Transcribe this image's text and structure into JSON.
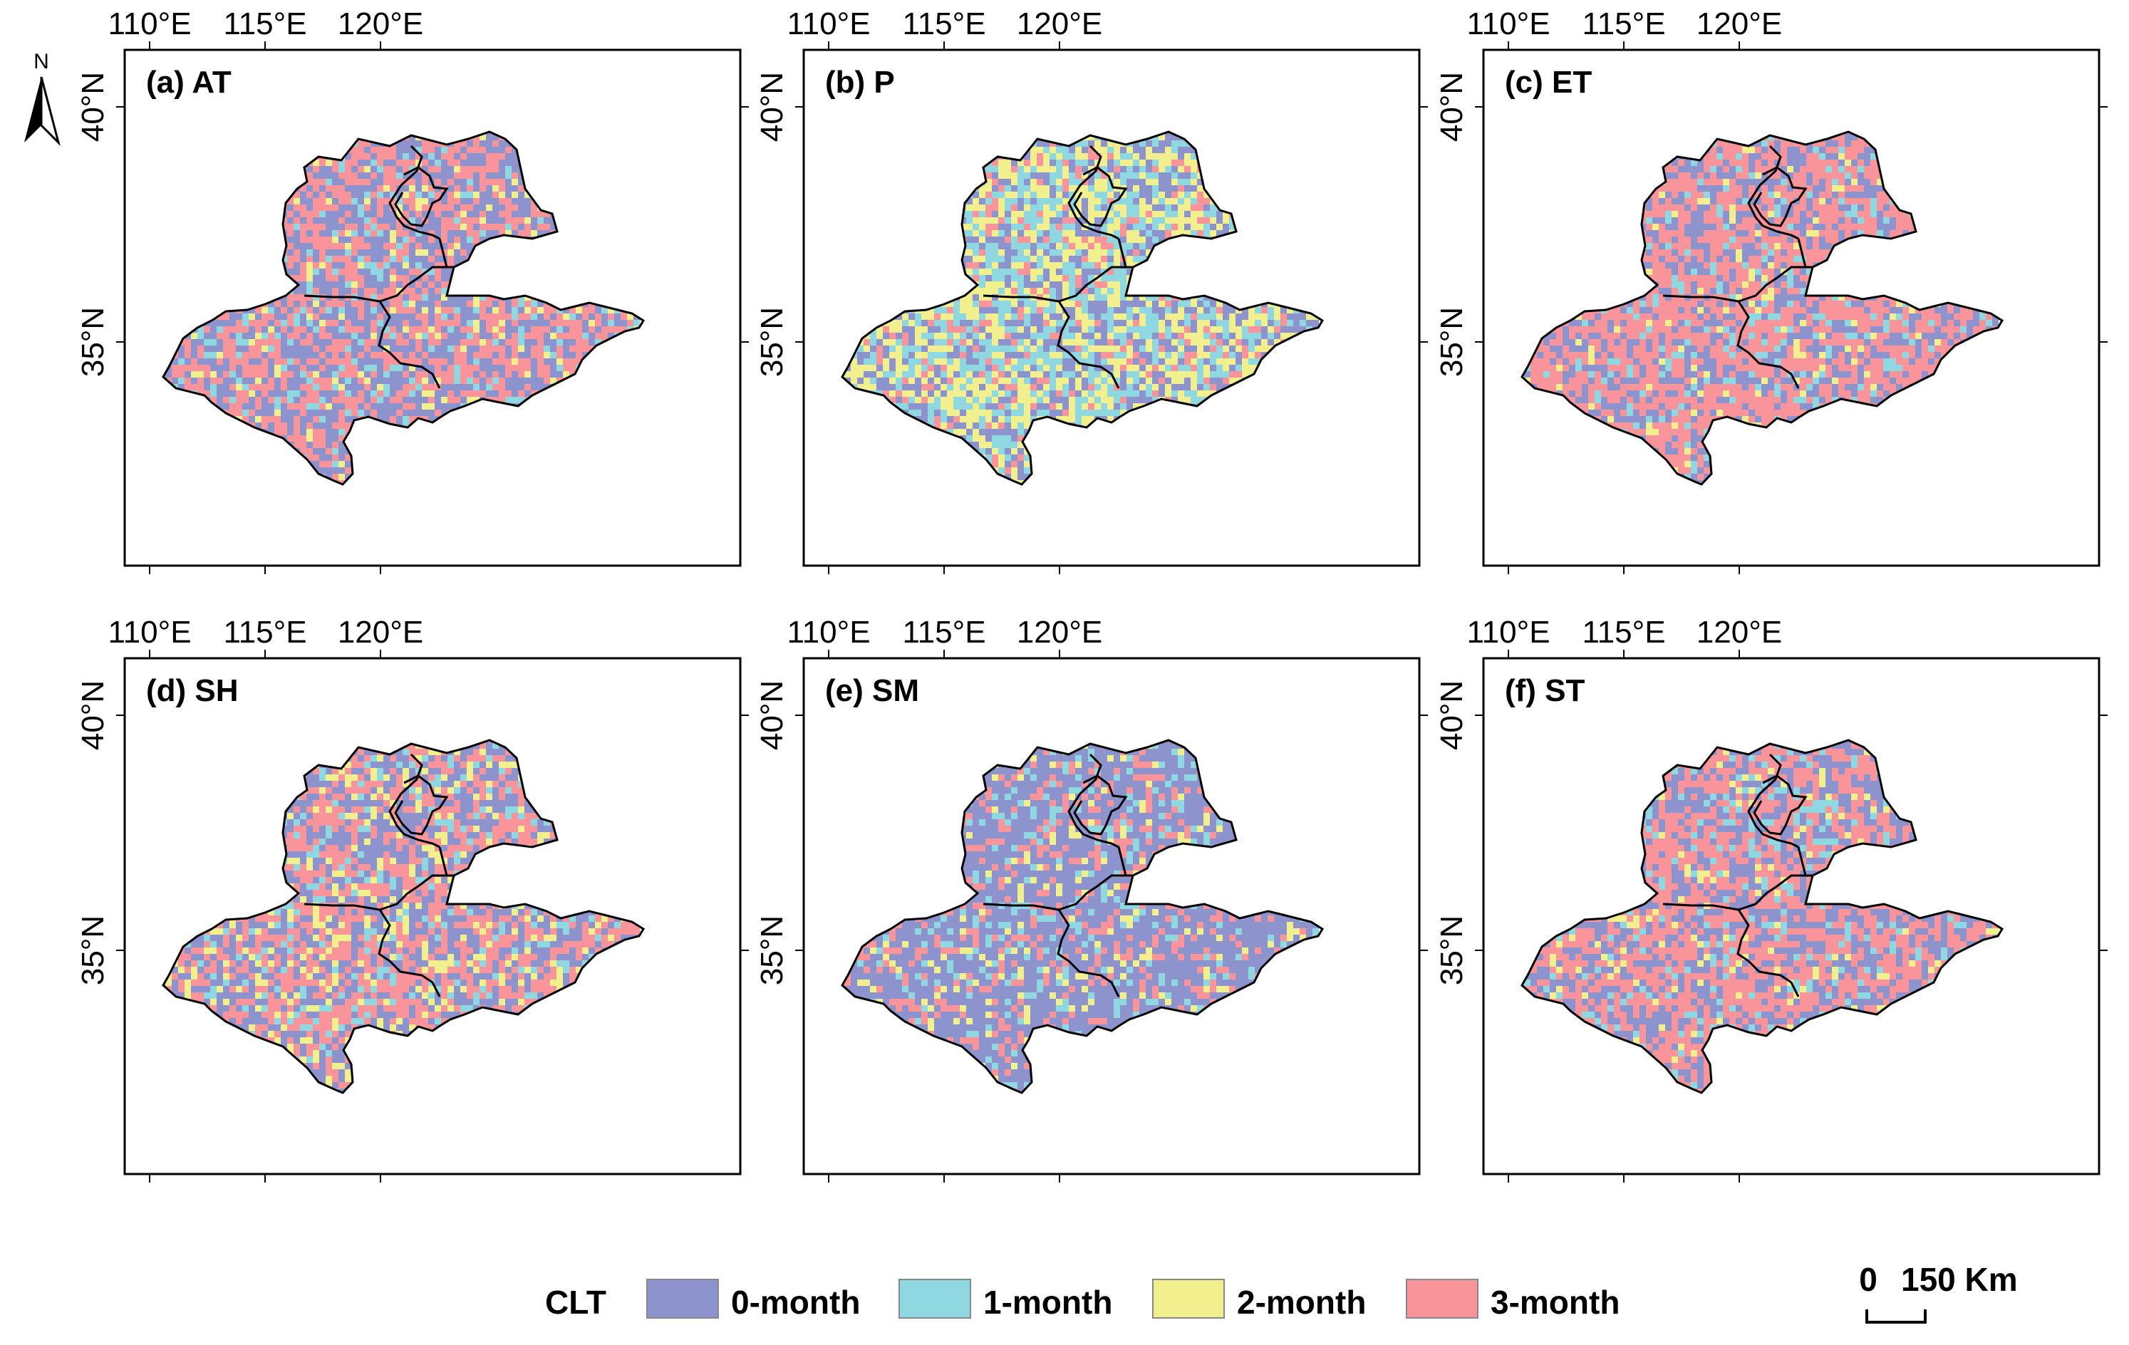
{
  "figure": {
    "legend": {
      "title": "CLT",
      "items": [
        {
          "label": "0-month",
          "color": "#8d93cc"
        },
        {
          "label": "1-month",
          "color": "#8fd8e2"
        },
        {
          "label": "2-month",
          "color": "#f2f08e"
        },
        {
          "label": "3-month",
          "color": "#f9949a"
        }
      ]
    },
    "scale_bar": {
      "zero": "0",
      "value": "150 Km"
    },
    "north_arrow": {
      "label": "N"
    },
    "lon_ticks": [
      "110°E",
      "115°E",
      "120°E"
    ],
    "lat_ticks": [
      "40°N",
      "35°N"
    ],
    "panels": [
      {
        "label": "(a) AT",
        "weights": [
          0.4,
          0.1,
          0.07,
          0.43
        ]
      },
      {
        "label": "(b) P",
        "weights": [
          0.25,
          0.3,
          0.32,
          0.13
        ]
      },
      {
        "label": "(c) ET",
        "weights": [
          0.32,
          0.1,
          0.05,
          0.53
        ]
      },
      {
        "label": "(d) SH",
        "weights": [
          0.38,
          0.1,
          0.14,
          0.38
        ]
      },
      {
        "label": "(e) SM",
        "weights": [
          0.62,
          0.12,
          0.08,
          0.18
        ]
      },
      {
        "label": "(f) ST",
        "weights": [
          0.36,
          0.1,
          0.06,
          0.48
        ]
      }
    ]
  }
}
